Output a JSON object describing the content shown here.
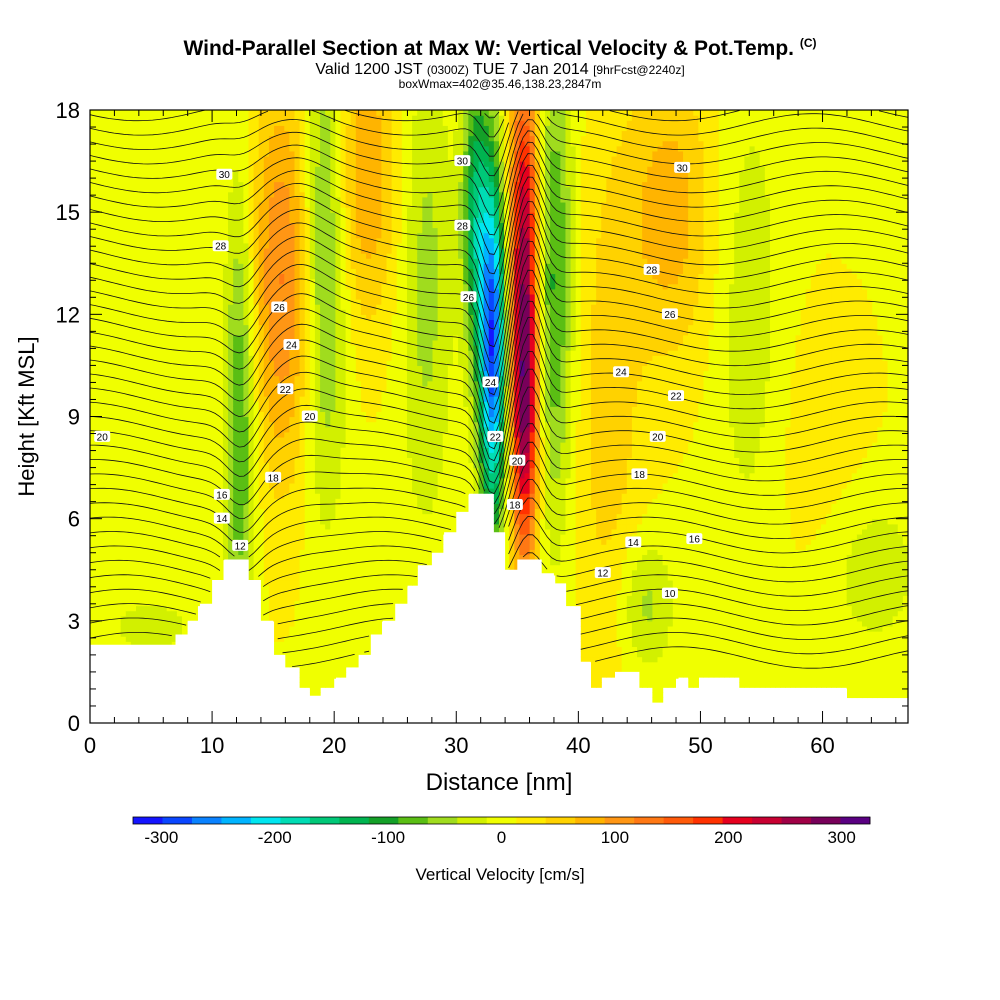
{
  "header": {
    "title_main": "Wind-Parallel Section at Max W: Vertical Velocity & Pot.Temp.",
    "title_mark": "(C)",
    "valid_a": "Valid 1200 JST",
    "valid_b": "(0300Z)",
    "valid_c": "TUE 7 Jan 2014",
    "valid_d": "[9hrFcst@2240z]",
    "box_line": "boxWmax=402@35.46,138.23,2847m"
  },
  "chart_data": {
    "type": "heatmap",
    "xlabel": "Distance [nm]",
    "ylabel": "Height [Kft MSL]",
    "xlim": [
      0,
      67
    ],
    "ylim": [
      0,
      18
    ],
    "x_ticks": [
      0,
      10,
      20,
      30,
      40,
      50,
      60
    ],
    "y_ticks": [
      0,
      3,
      6,
      9,
      12,
      15,
      18
    ],
    "colorbar": {
      "label": "Vertical Velocity [cm/s]",
      "range": [
        -325,
        325
      ],
      "ticks": [
        -300,
        -200,
        -100,
        0,
        100,
        200,
        300
      ],
      "colors": [
        "#1414ff",
        "#0a46ff",
        "#0a82ff",
        "#00b4ff",
        "#00e6f0",
        "#00dcb4",
        "#00c878",
        "#00b450",
        "#14a028",
        "#5abe14",
        "#a0dc1e",
        "#d2f000",
        "#f0ff00",
        "#ffeb00",
        "#ffd200",
        "#ffb400",
        "#ff9614",
        "#ff7814",
        "#ff5a0a",
        "#ff3200",
        "#e6001e",
        "#c80032",
        "#a00046",
        "#78005a",
        "#5a0082"
      ]
    },
    "vertical_velocity_peaks": [
      {
        "x": 33,
        "y": 11,
        "w_cm_s": -300
      },
      {
        "x": 35.5,
        "y": 10,
        "w_cm_s": 300
      },
      {
        "x": 12.5,
        "y": 9,
        "w_cm_s": -100
      },
      {
        "x": 16,
        "y": 13,
        "w_cm_s": 120
      },
      {
        "x": 19,
        "y": 14,
        "w_cm_s": -120
      },
      {
        "x": 38,
        "y": 11,
        "w_cm_s": -120
      },
      {
        "x": 47,
        "y": 15,
        "w_cm_s": 100
      },
      {
        "x": 46,
        "y": 3.5,
        "w_cm_s": -60
      }
    ],
    "terrain": [
      [
        0,
        2.3
      ],
      [
        7,
        2.3
      ],
      [
        7,
        2.6
      ],
      [
        8,
        2.6
      ],
      [
        8,
        3
      ],
      [
        9,
        3
      ],
      [
        9,
        3.5
      ],
      [
        10,
        3.5
      ],
      [
        10,
        4.2
      ],
      [
        11,
        4.2
      ],
      [
        11,
        4.8
      ],
      [
        13,
        4.8
      ],
      [
        13,
        4.2
      ],
      [
        14,
        4.2
      ],
      [
        14,
        3
      ],
      [
        15,
        3
      ],
      [
        15,
        2
      ],
      [
        16,
        2
      ],
      [
        16,
        1.6
      ],
      [
        17,
        1.6
      ],
      [
        17,
        1
      ],
      [
        18,
        1
      ],
      [
        18,
        0.8
      ],
      [
        19,
        0.8
      ],
      [
        19,
        1
      ],
      [
        20,
        1
      ],
      [
        20,
        1.3
      ],
      [
        21,
        1.3
      ],
      [
        21,
        1.6
      ],
      [
        22,
        1.6
      ],
      [
        22,
        2
      ],
      [
        23,
        2
      ],
      [
        23,
        2.6
      ],
      [
        24,
        2.6
      ],
      [
        24,
        3
      ],
      [
        25,
        3
      ],
      [
        25,
        3.5
      ],
      [
        26,
        3.5
      ],
      [
        26,
        4
      ],
      [
        27,
        4
      ],
      [
        27,
        4.6
      ],
      [
        28,
        4.6
      ],
      [
        28,
        5
      ],
      [
        29,
        5
      ],
      [
        29,
        5.6
      ],
      [
        30,
        5.6
      ],
      [
        30,
        6.2
      ],
      [
        31,
        6.2
      ],
      [
        31,
        6.7
      ],
      [
        33,
        6.7
      ],
      [
        33,
        5.6
      ],
      [
        34,
        5.6
      ],
      [
        34,
        4.5
      ],
      [
        35,
        4.5
      ],
      [
        35,
        4.8
      ],
      [
        37,
        4.8
      ],
      [
        37,
        4.4
      ],
      [
        38,
        4.4
      ],
      [
        38,
        4.1
      ],
      [
        39,
        4.1
      ],
      [
        39,
        3.4
      ],
      [
        40,
        3.4
      ],
      [
        40,
        1.8
      ],
      [
        41,
        1.8
      ],
      [
        41,
        1
      ],
      [
        42,
        1
      ],
      [
        42,
        1.3
      ],
      [
        43,
        1.3
      ],
      [
        43,
        1.5
      ],
      [
        45,
        1.5
      ],
      [
        45,
        1
      ],
      [
        46,
        1
      ],
      [
        46,
        0.6
      ],
      [
        47,
        0.6
      ],
      [
        47,
        1
      ],
      [
        48,
        1
      ],
      [
        48,
        1.3
      ],
      [
        49,
        1.3
      ],
      [
        49,
        1
      ],
      [
        50,
        1
      ],
      [
        50,
        1.3
      ],
      [
        53,
        1.3
      ],
      [
        53,
        1
      ],
      [
        62,
        1
      ],
      [
        62,
        0.7
      ],
      [
        67,
        0.7
      ]
    ],
    "theta_labels": [
      {
        "text": "30",
        "x": 11,
        "y": 16.1
      },
      {
        "text": "28",
        "x": 10.7,
        "y": 14
      },
      {
        "text": "26",
        "x": 15.5,
        "y": 12.2
      },
      {
        "text": "24",
        "x": 16.5,
        "y": 11.1
      },
      {
        "text": "22",
        "x": 16,
        "y": 9.8
      },
      {
        "text": "20",
        "x": 18,
        "y": 9
      },
      {
        "text": "20",
        "x": 1,
        "y": 8.4
      },
      {
        "text": "18",
        "x": 15,
        "y": 7.2
      },
      {
        "text": "16",
        "x": 10.8,
        "y": 6.7
      },
      {
        "text": "14",
        "x": 10.8,
        "y": 6.0
      },
      {
        "text": "12",
        "x": 12.3,
        "y": 5.2
      },
      {
        "text": "30",
        "x": 30.5,
        "y": 16.5
      },
      {
        "text": "28",
        "x": 30.5,
        "y": 14.6
      },
      {
        "text": "26",
        "x": 31,
        "y": 12.5
      },
      {
        "text": "24",
        "x": 32.8,
        "y": 10
      },
      {
        "text": "22",
        "x": 33.2,
        "y": 8.4
      },
      {
        "text": "20",
        "x": 35,
        "y": 7.7
      },
      {
        "text": "18",
        "x": 34.8,
        "y": 6.4
      },
      {
        "text": "30",
        "x": 48.5,
        "y": 16.3
      },
      {
        "text": "28",
        "x": 46,
        "y": 13.3
      },
      {
        "text": "26",
        "x": 47.5,
        "y": 12
      },
      {
        "text": "24",
        "x": 43.5,
        "y": 10.3
      },
      {
        "text": "22",
        "x": 48,
        "y": 9.6
      },
      {
        "text": "20",
        "x": 46.5,
        "y": 8.4
      },
      {
        "text": "18",
        "x": 45,
        "y": 7.3
      },
      {
        "text": "16",
        "x": 49.5,
        "y": 5.4
      },
      {
        "text": "14",
        "x": 44.5,
        "y": 5.3
      },
      {
        "text": "12",
        "x": 42,
        "y": 4.4
      },
      {
        "text": "10",
        "x": 47.5,
        "y": 3.8
      }
    ]
  }
}
